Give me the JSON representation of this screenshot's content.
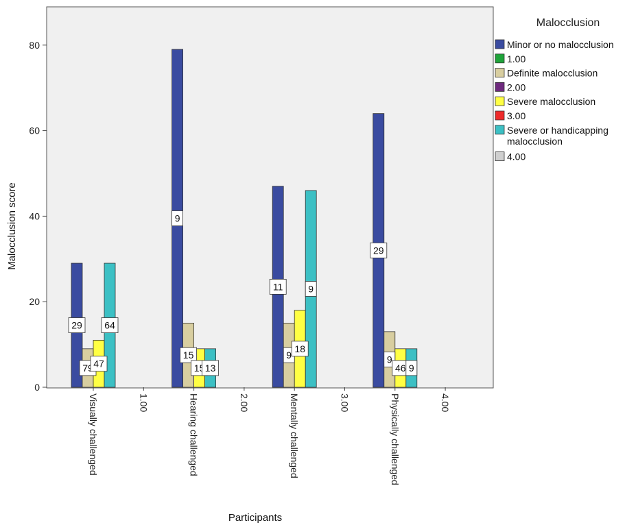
{
  "chart_data": {
    "type": "bar",
    "title": "",
    "xlabel": "Participants",
    "ylabel": "Malocclusion score",
    "ylim": [
      0,
      88
    ],
    "yticks": [
      0,
      20,
      40,
      60,
      80
    ],
    "categories": [
      "Visually challenged",
      "1.00",
      "Hearing challenged",
      "2.00",
      "Mentally challenged",
      "3.00",
      "Physically challenged",
      "4.00"
    ],
    "legend_title": "Malocclusion",
    "legend_position": "right",
    "series": [
      {
        "name": "Minor or no malocclusion",
        "color": "#3a4ba0",
        "values": [
          29,
          null,
          79,
          null,
          47,
          null,
          64,
          null
        ]
      },
      {
        "name": "1.00",
        "color": "#1fa43a",
        "values": [
          null,
          null,
          null,
          null,
          null,
          null,
          null,
          null
        ]
      },
      {
        "name": "Definite malocclusion",
        "color": "#d8cea0",
        "values": [
          9,
          null,
          15,
          null,
          15,
          null,
          13,
          null
        ]
      },
      {
        "name": "2.00",
        "color": "#6e2a7e",
        "values": [
          null,
          null,
          null,
          null,
          null,
          null,
          null,
          null
        ]
      },
      {
        "name": "Severe malocclusion",
        "color": "#ffff44",
        "values": [
          11,
          null,
          9,
          null,
          18,
          null,
          9,
          null
        ]
      },
      {
        "name": "3.00",
        "color": "#ee2a2a",
        "values": [
          null,
          null,
          null,
          null,
          null,
          null,
          null,
          null
        ]
      },
      {
        "name": "Severe or handicapping malocclusion",
        "color": "#3cc0c4",
        "values": [
          29,
          null,
          9,
          null,
          46,
          null,
          9,
          null
        ]
      },
      {
        "name": "4.00",
        "color": "#cfcfcf",
        "values": [
          null,
          null,
          null,
          null,
          null,
          null,
          null,
          null
        ]
      }
    ],
    "data_labels": [
      "29",
      "9",
      "11",
      "29",
      "79",
      "15",
      "9",
      "9",
      "47",
      "15",
      "18",
      "46",
      "64",
      "13",
      "9",
      "9"
    ]
  }
}
